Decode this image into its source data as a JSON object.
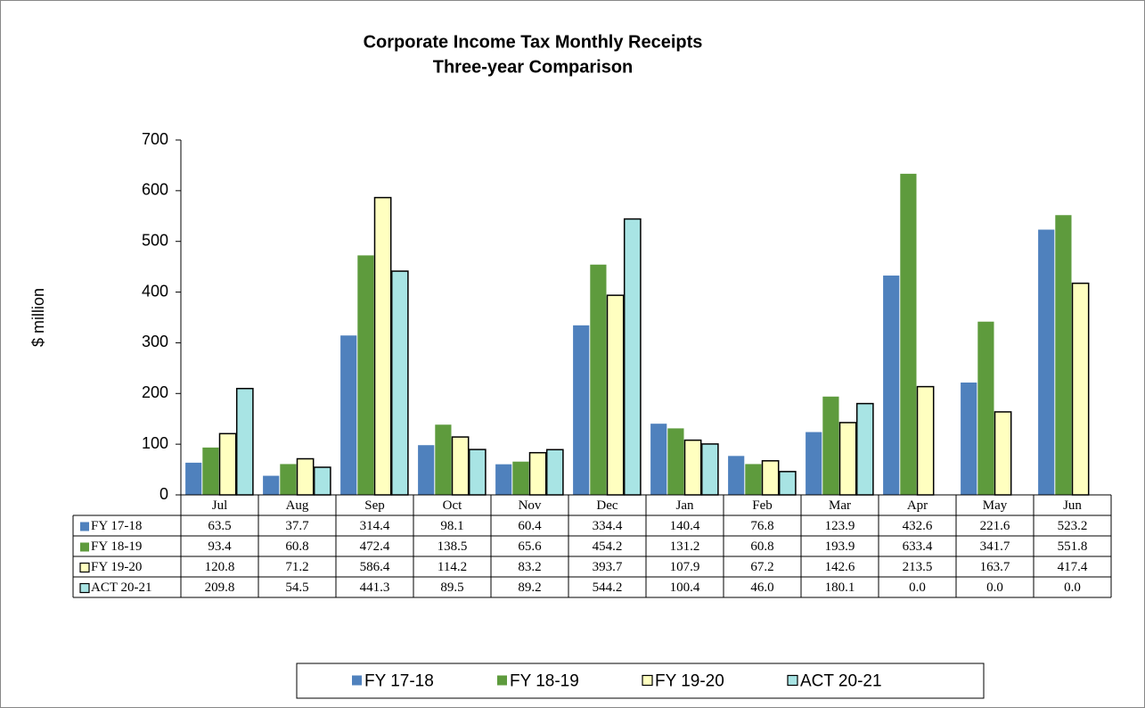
{
  "chart_data": {
    "type": "bar",
    "title": "Corporate Income Tax Monthly Receipts",
    "subtitle": "Three-year Comparison",
    "ylabel": "$ million",
    "categories": [
      "Jul",
      "Aug",
      "Sep",
      "Oct",
      "Nov",
      "Dec",
      "Jan",
      "Feb",
      "Mar",
      "Apr",
      "May",
      "Jun"
    ],
    "series": [
      {
        "name": "FY 17-18",
        "color": "#4f81bd",
        "values": [
          63.5,
          37.7,
          314.4,
          98.1,
          60.4,
          334.4,
          140.4,
          76.8,
          123.9,
          432.6,
          221.6,
          523.2
        ],
        "value_labels": [
          "63.5",
          "37.7",
          "314.4",
          "98.1",
          "60.4",
          "334.4",
          "140.4",
          "76.8",
          "123.9",
          "432.6",
          "221.6",
          "523.2"
        ]
      },
      {
        "name": "FY 18-19",
        "color": "#5e9b3d",
        "values": [
          93.4,
          60.8,
          472.4,
          138.5,
          65.6,
          454.2,
          131.2,
          60.8,
          193.9,
          633.4,
          341.7,
          551.8
        ],
        "value_labels": [
          "93.4",
          "60.8",
          "472.4",
          "138.5",
          "65.6",
          "454.2",
          "131.2",
          "60.8",
          "193.9",
          "633.4",
          "341.7",
          "551.8"
        ]
      },
      {
        "name": "FY 19-20",
        "color": "#ffffc0",
        "edgecolor": "#000000",
        "values": [
          120.8,
          71.2,
          586.4,
          114.2,
          83.2,
          393.7,
          107.9,
          67.2,
          142.6,
          213.5,
          163.7,
          417.4
        ],
        "value_labels": [
          "120.8",
          "71.2",
          "586.4",
          "114.2",
          "83.2",
          "393.7",
          "107.9",
          "67.2",
          "142.6",
          "213.5",
          "163.7",
          "417.4"
        ]
      },
      {
        "name": "ACT 20-21",
        "color": "#a8e4e4",
        "edgecolor": "#000000",
        "values": [
          209.8,
          54.5,
          441.3,
          89.5,
          89.2,
          544.2,
          100.4,
          46,
          180.1,
          0,
          0,
          0
        ],
        "value_labels": [
          "209.8",
          "54.5",
          "441.3",
          "89.5",
          "89.2",
          "544.2",
          "100.4",
          "46.0",
          "180.1",
          "0.0",
          "0.0",
          "0.0"
        ]
      }
    ],
    "ylim": [
      0,
      700
    ],
    "yticks": [
      0,
      100,
      200,
      300,
      400,
      500,
      600,
      700
    ],
    "grid": false,
    "legend": "bottom"
  }
}
